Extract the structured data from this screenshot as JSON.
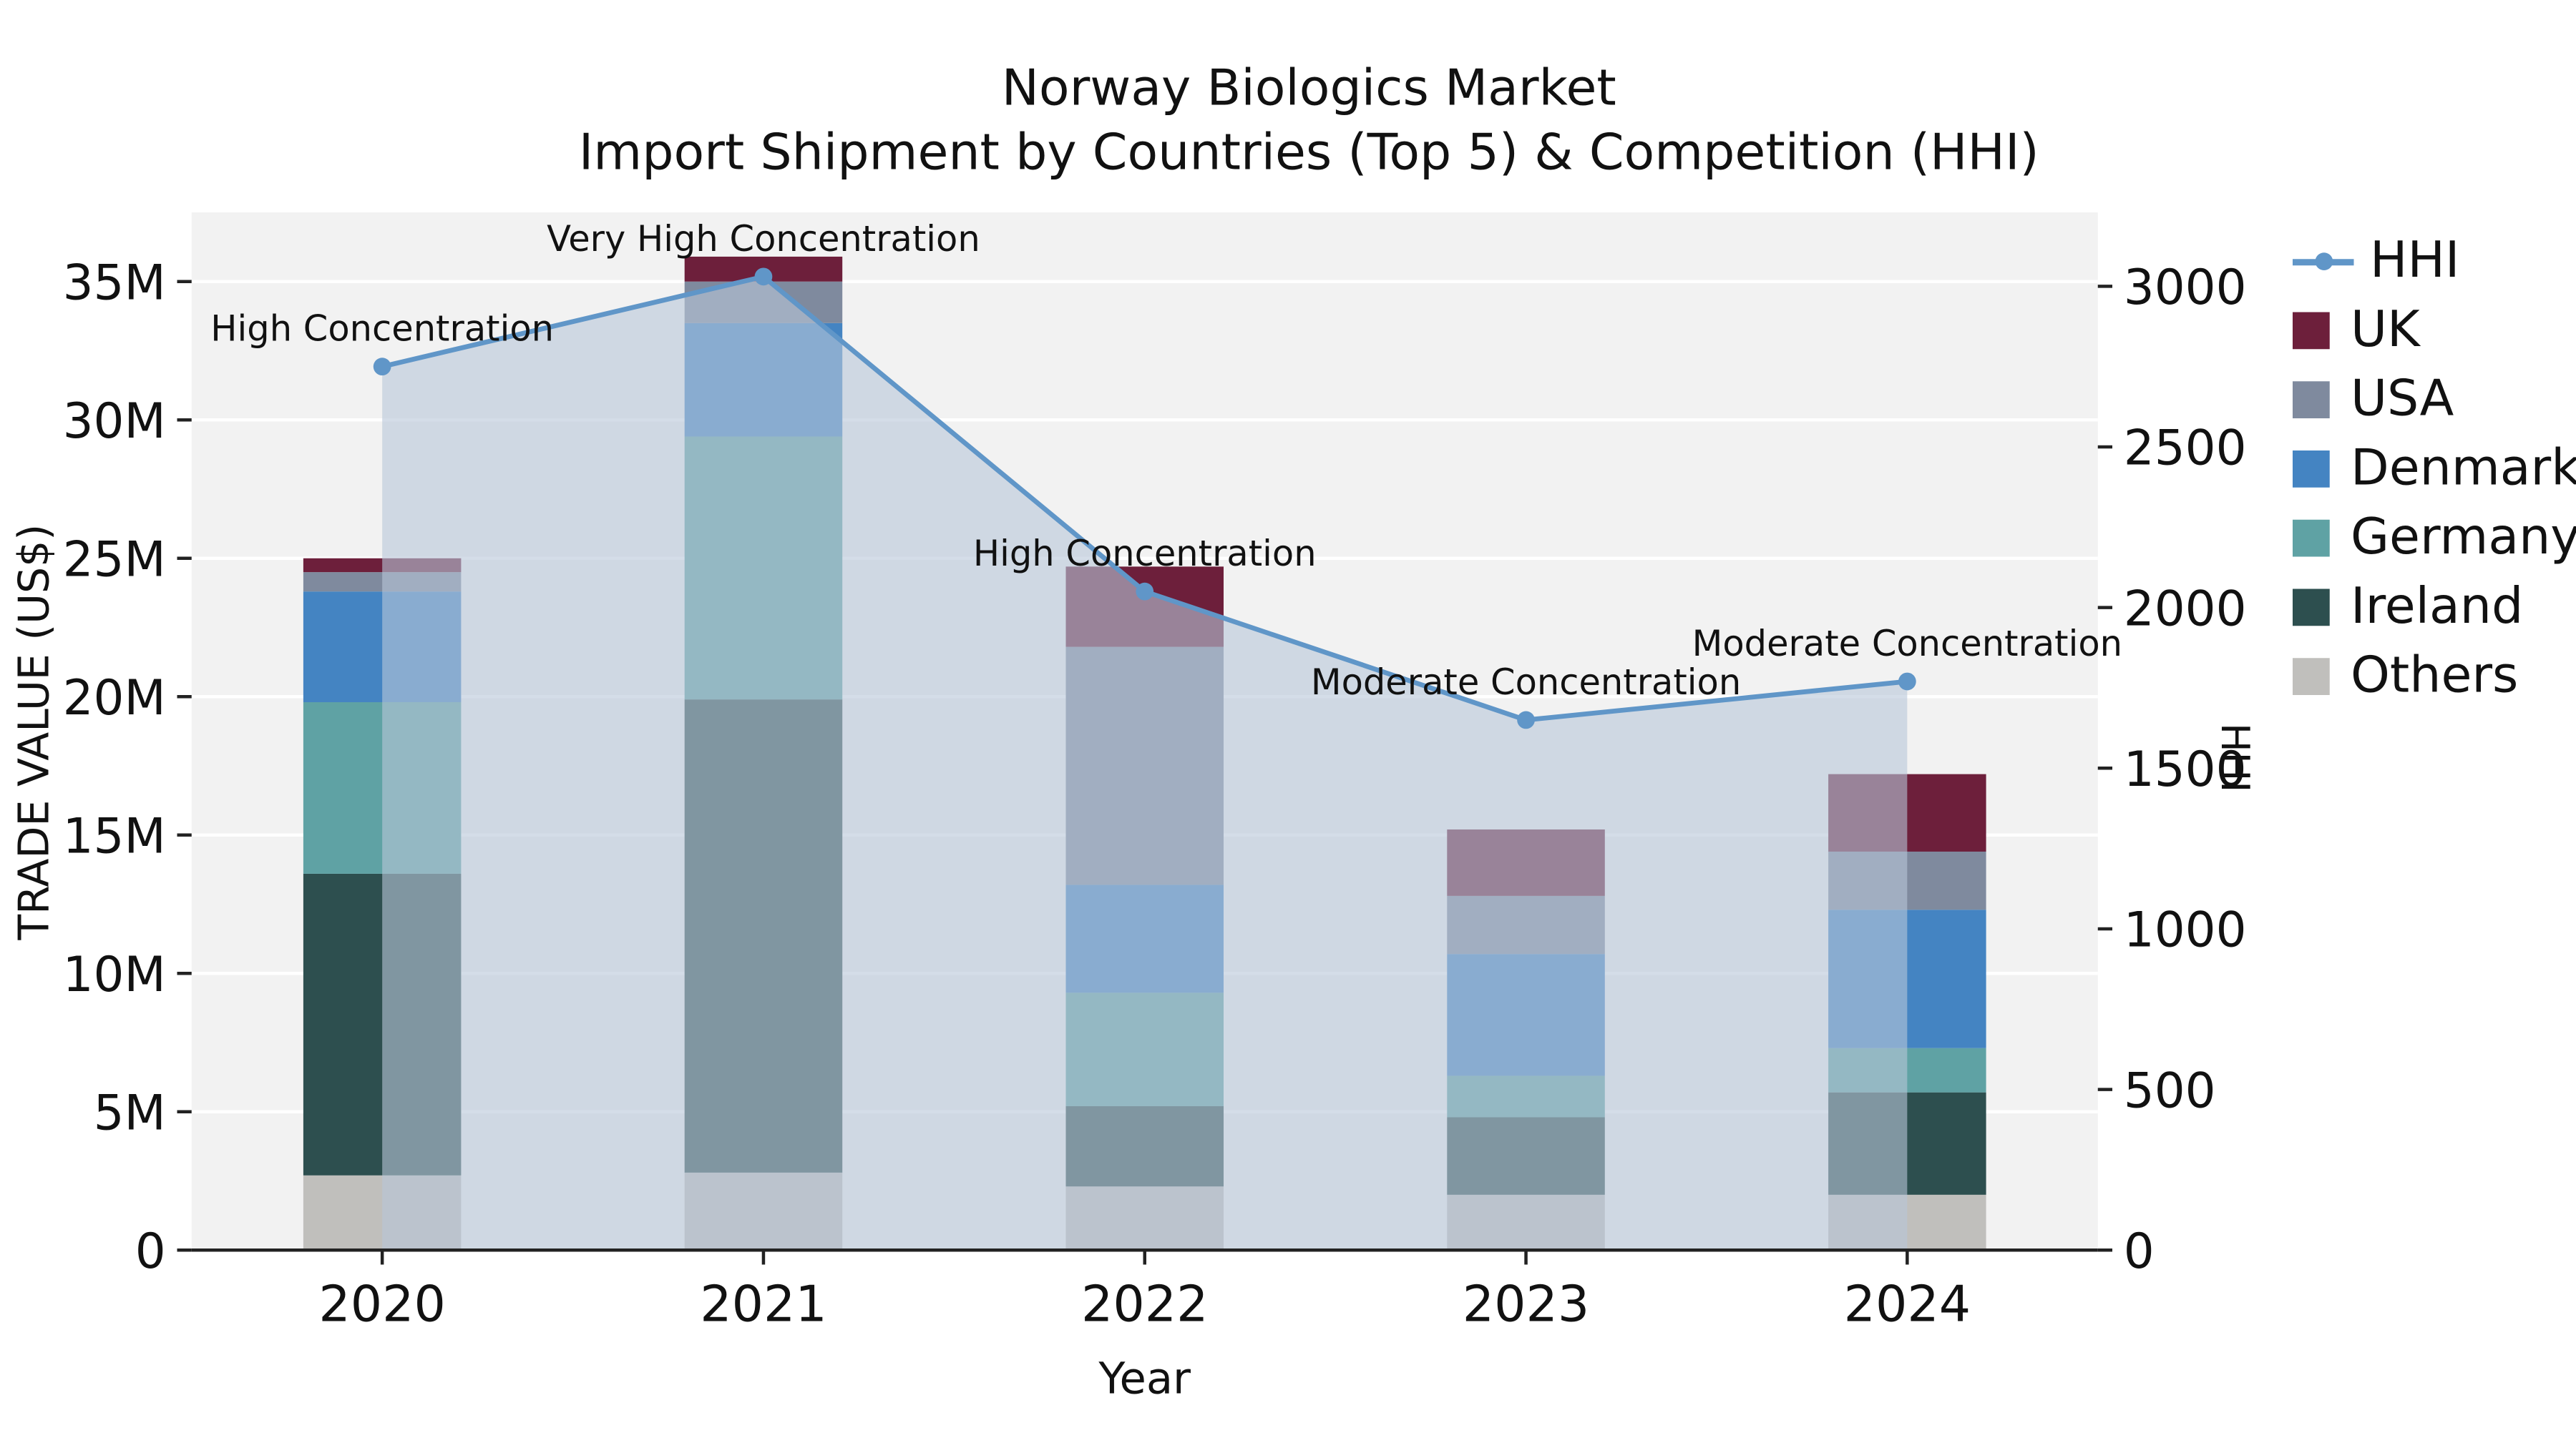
{
  "title": {
    "line1": "Norway Biologics Market",
    "line2": "Import Shipment by Countries (Top 5) & Competition (HHI)"
  },
  "axes": {
    "ylabel": "TRADE VALUE (US$)",
    "y2label": "HHI",
    "xlabel": "Year"
  },
  "chart_data": {
    "type": "bar",
    "subtype": "stacked-bars-with-secondary-line-and-area",
    "categories": [
      "2020",
      "2021",
      "2022",
      "2023",
      "2024"
    ],
    "series": [
      {
        "name": "Others",
        "color": "#c0bfbc",
        "values": [
          2.7,
          2.8,
          2.3,
          2.0,
          2.0
        ]
      },
      {
        "name": "Ireland",
        "color": "#2d4f4f",
        "values": [
          10.9,
          17.1,
          2.9,
          2.8,
          3.7
        ]
      },
      {
        "name": "Germany",
        "color": "#5fa2a4",
        "values": [
          6.2,
          9.5,
          4.1,
          1.5,
          1.6
        ]
      },
      {
        "name": "Denmark",
        "color": "#4484c2",
        "values": [
          4.0,
          4.1,
          3.9,
          4.4,
          5.0
        ]
      },
      {
        "name": "USA",
        "color": "#7f8a9e",
        "values": [
          0.7,
          1.5,
          8.6,
          2.1,
          2.1
        ]
      },
      {
        "name": "UK",
        "color": "#6d1f3b",
        "values": [
          0.5,
          0.9,
          2.9,
          2.4,
          2.8
        ]
      }
    ],
    "line_series": {
      "name": "HHI",
      "color": "#6096c8",
      "area_color": "#b8c6d9",
      "area_opacity": 0.6,
      "values": [
        2750,
        3030,
        2050,
        1650,
        1770
      ]
    },
    "annotations": [
      "High Concentration",
      "Very High Concentration",
      "High Concentration",
      "Moderate Concentration",
      "Moderate Concentration"
    ],
    "title": "Norway Biologics Market Import Shipment by Countries (Top 5) & Competition (HHI)",
    "xlabel": "Year",
    "ylabel": "TRADE VALUE (US$)",
    "y2label": "HHI",
    "ylim": [
      0,
      37.5
    ],
    "y2lim": [
      0,
      3230
    ],
    "yticks": [
      0,
      5,
      10,
      15,
      20,
      25,
      30,
      35
    ],
    "ytick_labels": [
      "0",
      "5M",
      "10M",
      "15M",
      "20M",
      "25M",
      "30M",
      "35M"
    ],
    "y2ticks": [
      0,
      500,
      1000,
      1500,
      2000,
      2500,
      3000
    ],
    "y2tick_labels": [
      "0",
      "500",
      "1000",
      "1500",
      "2000",
      "2500",
      "3000"
    ],
    "grid": "horizontal-white-on-lightgray",
    "plot_bg": "#f2f2f2",
    "legend_position": "right",
    "legend_order": [
      "HHI",
      "UK",
      "USA",
      "Denmark",
      "Germany",
      "Ireland",
      "Others"
    ]
  }
}
